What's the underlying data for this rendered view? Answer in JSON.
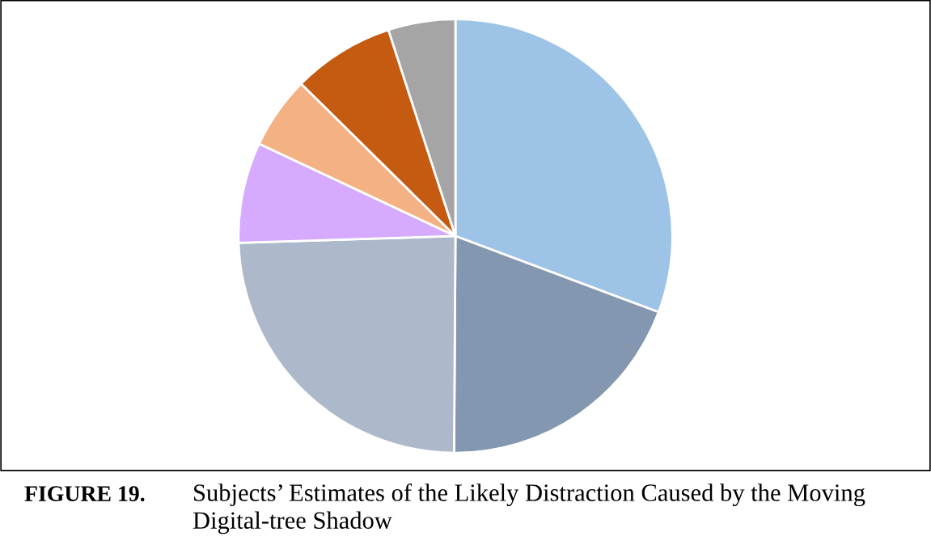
{
  "chart_data": {
    "type": "pie",
    "title": "Subjects’ Estimates of the Likely Distraction Caused by the Moving Digital-tree Shadow",
    "annotations": [
      "FIGURE 19."
    ],
    "categories": [
      null,
      null,
      null,
      null,
      null,
      null,
      null
    ],
    "values": [
      30.7,
      19.4,
      24.4,
      7.5,
      5.4,
      7.6,
      5.0
    ],
    "colors": [
      "#9dc3e6",
      "#8497b0",
      "#adb9ca",
      "#d5aaff",
      "#f4b183",
      "#c55a11",
      "#a5a5a5"
    ],
    "legend": false
  }
}
